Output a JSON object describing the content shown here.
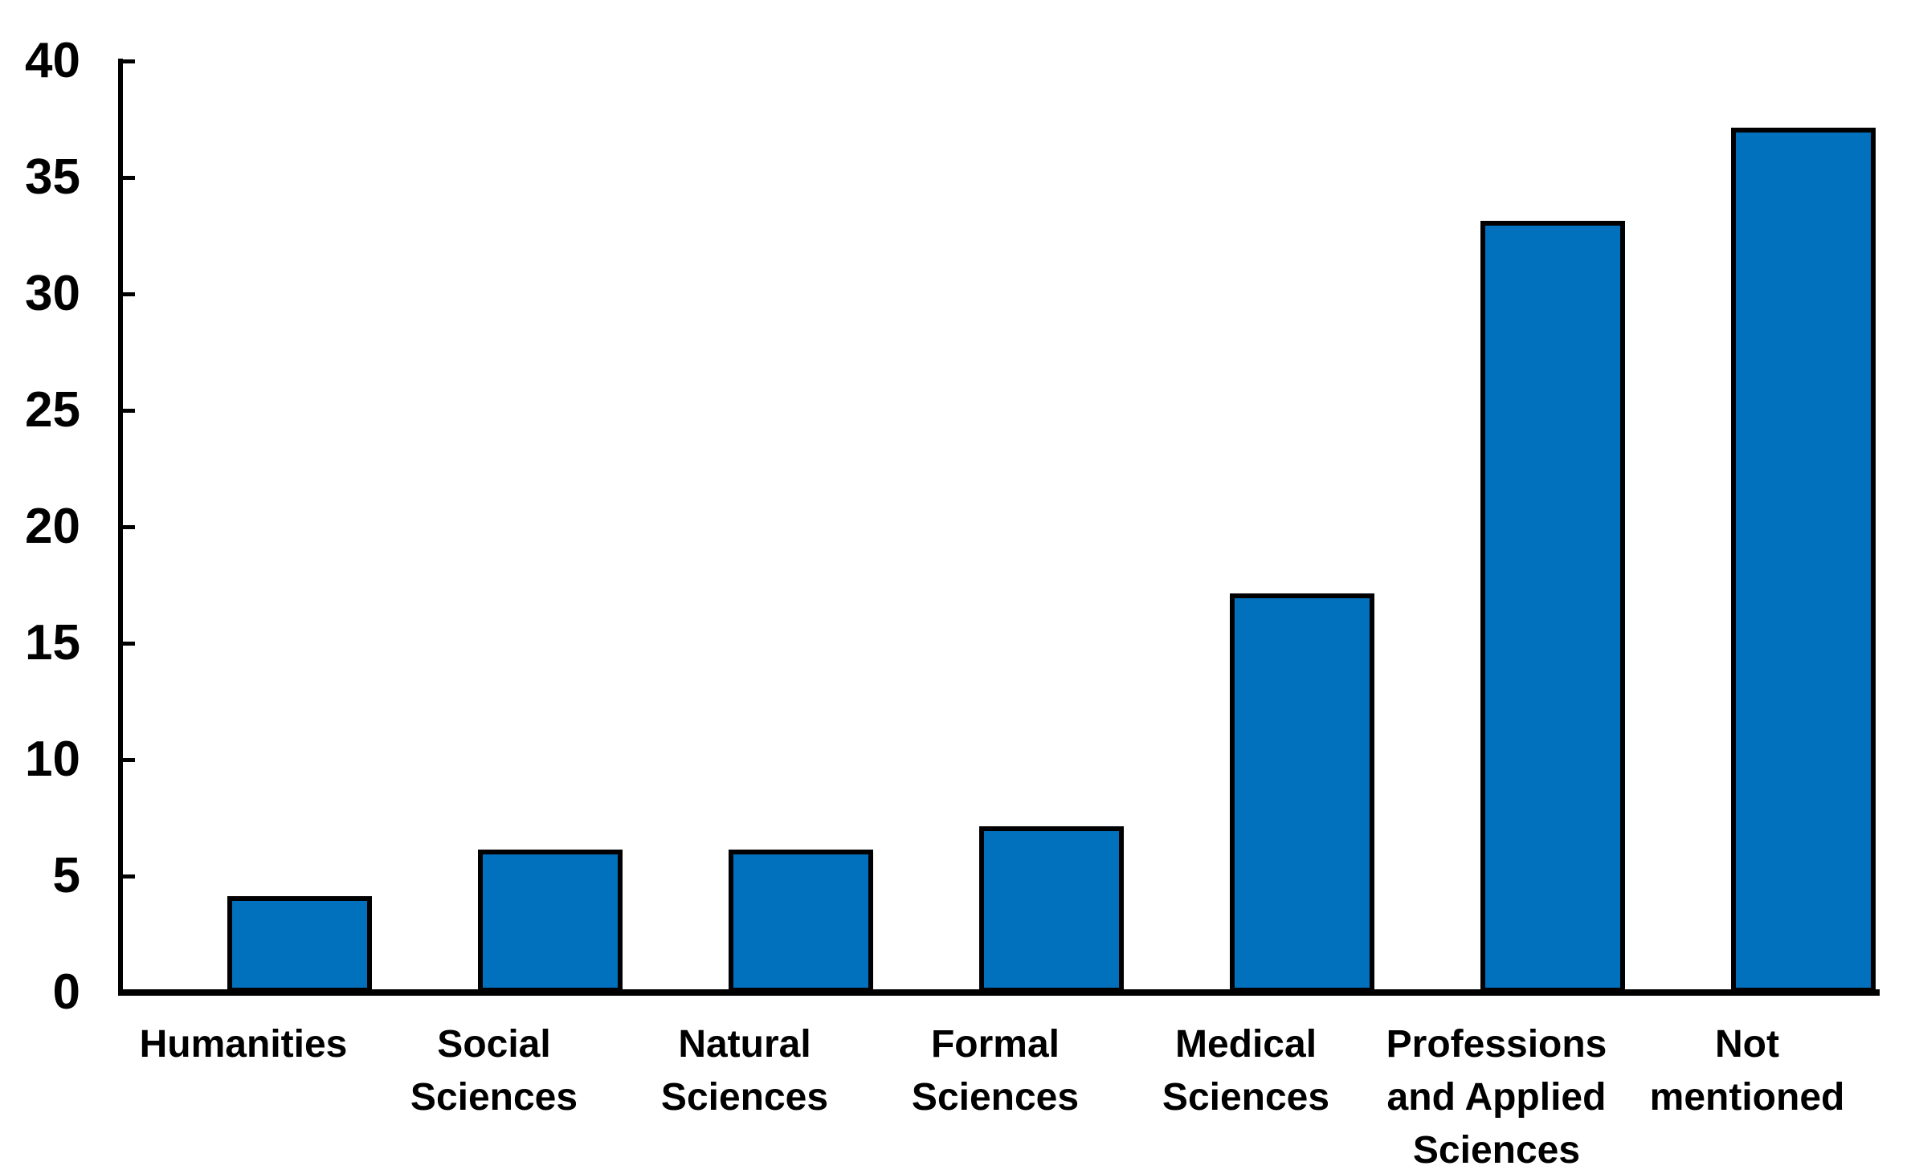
{
  "chart_data": {
    "type": "bar",
    "title": "",
    "xlabel": "",
    "ylabel": "",
    "categories": [
      "Humanities",
      "Social Sciences",
      "Natural Sciences",
      "Formal Sciences",
      "Medical Sciences",
      "Professions and Applied Sciences",
      "Not mentioned"
    ],
    "category_labels_display": [
      "Humanities",
      "Social\nSciences",
      "Natural\nSciences",
      "Formal\nSciences",
      "Medical\nSciences",
      "Professions\nand Applied\nSciences",
      "Not\nmentioned"
    ],
    "values": [
      4,
      6,
      6,
      7,
      17,
      33,
      37
    ],
    "ylim": [
      0,
      40
    ],
    "ytick_interval": 5,
    "ytick_labels": [
      "0",
      "5",
      "10",
      "15",
      "20",
      "25",
      "30",
      "35",
      "40"
    ],
    "grid": false,
    "legend": "none",
    "colors": {
      "bar_fill": "#0170BD",
      "bar_border": "#000000",
      "axis": "#000000",
      "background": "#FFFFFF",
      "text": "#000000"
    }
  }
}
